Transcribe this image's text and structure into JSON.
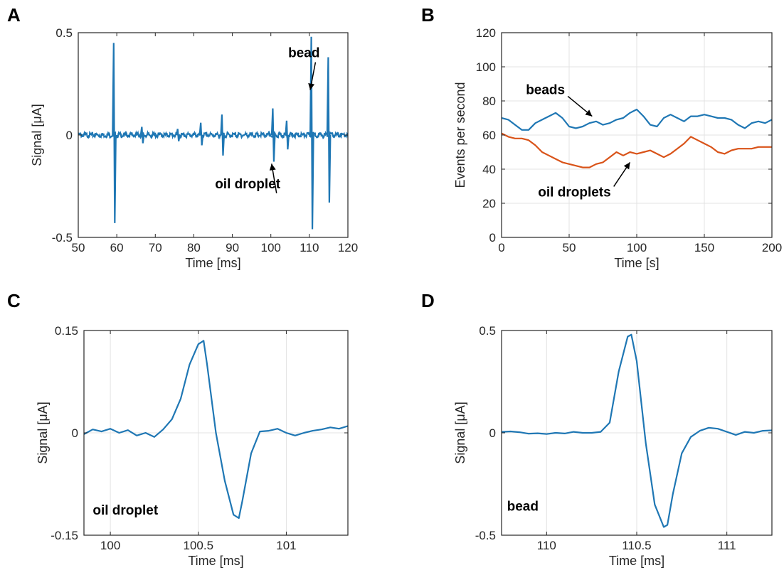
{
  "colors": {
    "blue": "#1f77b4",
    "orange": "#d95319",
    "grid": "#e3e3e3",
    "axis": "#262626"
  },
  "chart_data": [
    {
      "panel": "A",
      "type": "line",
      "xlabel": "Time [ms]",
      "ylabel": "Signal [μA]",
      "xlim": [
        50,
        120
      ],
      "ylim": [
        -0.5,
        0.5
      ],
      "xticks": [
        50,
        60,
        70,
        80,
        90,
        100,
        110,
        120
      ],
      "xtick_labels": [
        "50",
        "60",
        "70",
        "80",
        "90",
        "100",
        "110",
        "120"
      ],
      "yticks": [
        -0.5,
        0,
        0.5
      ],
      "ytick_labels": [
        "-0.5",
        "0",
        "0.5"
      ],
      "grid": false,
      "series": [
        {
          "color": "#1f77b4",
          "baseline": 0,
          "spikes": [
            {
              "x": 59.2,
              "max": 0.45,
              "min": -0.43
            },
            {
              "x": 66.5,
              "max": 0.04,
              "min": -0.04
            },
            {
              "x": 75.8,
              "max": 0.03,
              "min": -0.03
            },
            {
              "x": 81.8,
              "max": 0.06,
              "min": -0.05
            },
            {
              "x": 87.3,
              "max": 0.1,
              "min": -0.1
            },
            {
              "x": 100.5,
              "max": 0.13,
              "min": -0.13
            },
            {
              "x": 104.1,
              "max": 0.07,
              "min": -0.07
            },
            {
              "x": 110.5,
              "max": 0.48,
              "min": -0.46
            },
            {
              "x": 114.9,
              "max": 0.38,
              "min": -0.33
            }
          ]
        }
      ],
      "annotations": [
        {
          "text": "bead",
          "x": 104.5,
          "y": 0.38,
          "arrow_to": [
            110.2,
            0.22
          ]
        },
        {
          "text": "oil droplet",
          "x": 85.5,
          "y": -0.26,
          "arrow_to": [
            100.2,
            -0.14
          ]
        }
      ]
    },
    {
      "panel": "B",
      "type": "line",
      "xlabel": "Time [s]",
      "ylabel": "Events per second",
      "xlim": [
        0,
        200
      ],
      "ylim": [
        0,
        120
      ],
      "xticks": [
        0,
        50,
        100,
        150,
        200
      ],
      "xtick_labels": [
        "0",
        "50",
        "100",
        "150",
        "200"
      ],
      "yticks": [
        0,
        20,
        40,
        60,
        80,
        100,
        120
      ],
      "ytick_labels": [
        "0",
        "20",
        "40",
        "60",
        "80",
        "100",
        "120"
      ],
      "grid": true,
      "series": [
        {
          "color": "#1f77b4",
          "x": [
            0,
            5,
            10,
            15,
            20,
            25,
            30,
            35,
            40,
            45,
            50,
            55,
            60,
            65,
            70,
            75,
            80,
            85,
            90,
            95,
            100,
            105,
            110,
            115,
            120,
            125,
            130,
            135,
            140,
            145,
            150,
            155,
            160,
            165,
            170,
            175,
            180,
            185,
            190,
            195,
            200
          ],
          "y": [
            70,
            69,
            66,
            63,
            63,
            67,
            69,
            71,
            73,
            70,
            65,
            64,
            65,
            67,
            68,
            66,
            67,
            69,
            70,
            73,
            75,
            71,
            66,
            65,
            70,
            72,
            70,
            68,
            71,
            71,
            72,
            71,
            70,
            70,
            69,
            66,
            64,
            67,
            68,
            67,
            69
          ]
        },
        {
          "color": "#d95319",
          "x": [
            0,
            5,
            10,
            15,
            20,
            25,
            30,
            35,
            40,
            45,
            50,
            55,
            60,
            65,
            70,
            75,
            80,
            85,
            90,
            95,
            100,
            105,
            110,
            115,
            120,
            125,
            130,
            135,
            140,
            145,
            150,
            155,
            160,
            165,
            170,
            175,
            180,
            185,
            190,
            195,
            200
          ],
          "y": [
            61,
            59,
            58,
            58,
            57,
            54,
            50,
            48,
            46,
            44,
            43,
            42,
            41,
            41,
            43,
            44,
            47,
            50,
            48,
            50,
            49,
            50,
            51,
            49,
            47,
            49,
            52,
            55,
            59,
            57,
            55,
            53,
            50,
            49,
            51,
            52,
            52,
            52,
            53,
            53,
            53
          ]
        }
      ],
      "annotations": [
        {
          "text": "beads",
          "x": 18,
          "y": 84,
          "arrow_to": [
            67,
            71
          ]
        },
        {
          "text": "oil droplets",
          "x": 27,
          "y": 24,
          "arrow_to": [
            95,
            44
          ]
        }
      ]
    },
    {
      "panel": "C",
      "type": "line",
      "xlabel": "Time [ms]",
      "ylabel": "Signal [μA]",
      "xlim": [
        99.85,
        101.35
      ],
      "ylim": [
        -0.15,
        0.15
      ],
      "xticks": [
        100,
        100.5,
        101
      ],
      "xtick_labels": [
        "100",
        "100.5",
        "101"
      ],
      "yticks": [
        -0.15,
        0,
        0.15
      ],
      "ytick_labels": [
        "-0.15",
        "0",
        "0.15"
      ],
      "grid": true,
      "series": [
        {
          "color": "#1f77b4",
          "x": [
            99.85,
            99.9,
            99.95,
            100.0,
            100.05,
            100.1,
            100.15,
            100.2,
            100.25,
            100.3,
            100.35,
            100.4,
            100.45,
            100.5,
            100.53,
            100.55,
            100.6,
            100.65,
            100.7,
            100.73,
            100.75,
            100.8,
            100.85,
            100.9,
            100.95,
            101.0,
            101.05,
            101.1,
            101.15,
            101.2,
            101.25,
            101.3,
            101.35
          ],
          "y": [
            -0.002,
            0.005,
            0.002,
            0.006,
            0.0,
            0.004,
            -0.004,
            0.0,
            -0.006,
            0.005,
            0.02,
            0.05,
            0.1,
            0.13,
            0.135,
            0.1,
            0.0,
            -0.07,
            -0.12,
            -0.125,
            -0.1,
            -0.03,
            0.002,
            0.003,
            0.006,
            0.0,
            -0.004,
            0.0,
            0.003,
            0.005,
            0.008,
            0.006,
            0.01
          ]
        }
      ],
      "annotations": [
        {
          "text": "oil droplet",
          "x": 99.9,
          "y": -0.12
        }
      ]
    },
    {
      "panel": "D",
      "type": "line",
      "xlabel": "Time [ms]",
      "ylabel": "Signal [μA]",
      "xlim": [
        109.75,
        111.25
      ],
      "ylim": [
        -0.5,
        0.5
      ],
      "xticks": [
        110,
        110.5,
        111
      ],
      "xtick_labels": [
        "110",
        "110.5",
        "111"
      ],
      "yticks": [
        -0.5,
        0,
        0.5
      ],
      "ytick_labels": [
        "-0.5",
        "0",
        "0.5"
      ],
      "grid": true,
      "series": [
        {
          "color": "#1f77b4",
          "x": [
            109.75,
            109.8,
            109.85,
            109.9,
            109.95,
            110.0,
            110.05,
            110.1,
            110.15,
            110.2,
            110.25,
            110.3,
            110.35,
            110.4,
            110.45,
            110.47,
            110.5,
            110.55,
            110.6,
            110.65,
            110.67,
            110.7,
            110.75,
            110.8,
            110.85,
            110.9,
            110.95,
            111.0,
            111.05,
            111.1,
            111.15,
            111.2,
            111.25
          ],
          "y": [
            0.005,
            0.007,
            0.003,
            -0.004,
            -0.002,
            -0.006,
            0.0,
            -0.003,
            0.005,
            0.0,
            0.0,
            0.005,
            0.05,
            0.3,
            0.47,
            0.48,
            0.35,
            -0.05,
            -0.35,
            -0.46,
            -0.45,
            -0.3,
            -0.1,
            -0.02,
            0.01,
            0.025,
            0.02,
            0.005,
            -0.01,
            0.005,
            0.0,
            0.01,
            0.012
          ]
        }
      ],
      "annotations": [
        {
          "text": "bead",
          "x": 109.78,
          "y": -0.38
        }
      ]
    }
  ]
}
